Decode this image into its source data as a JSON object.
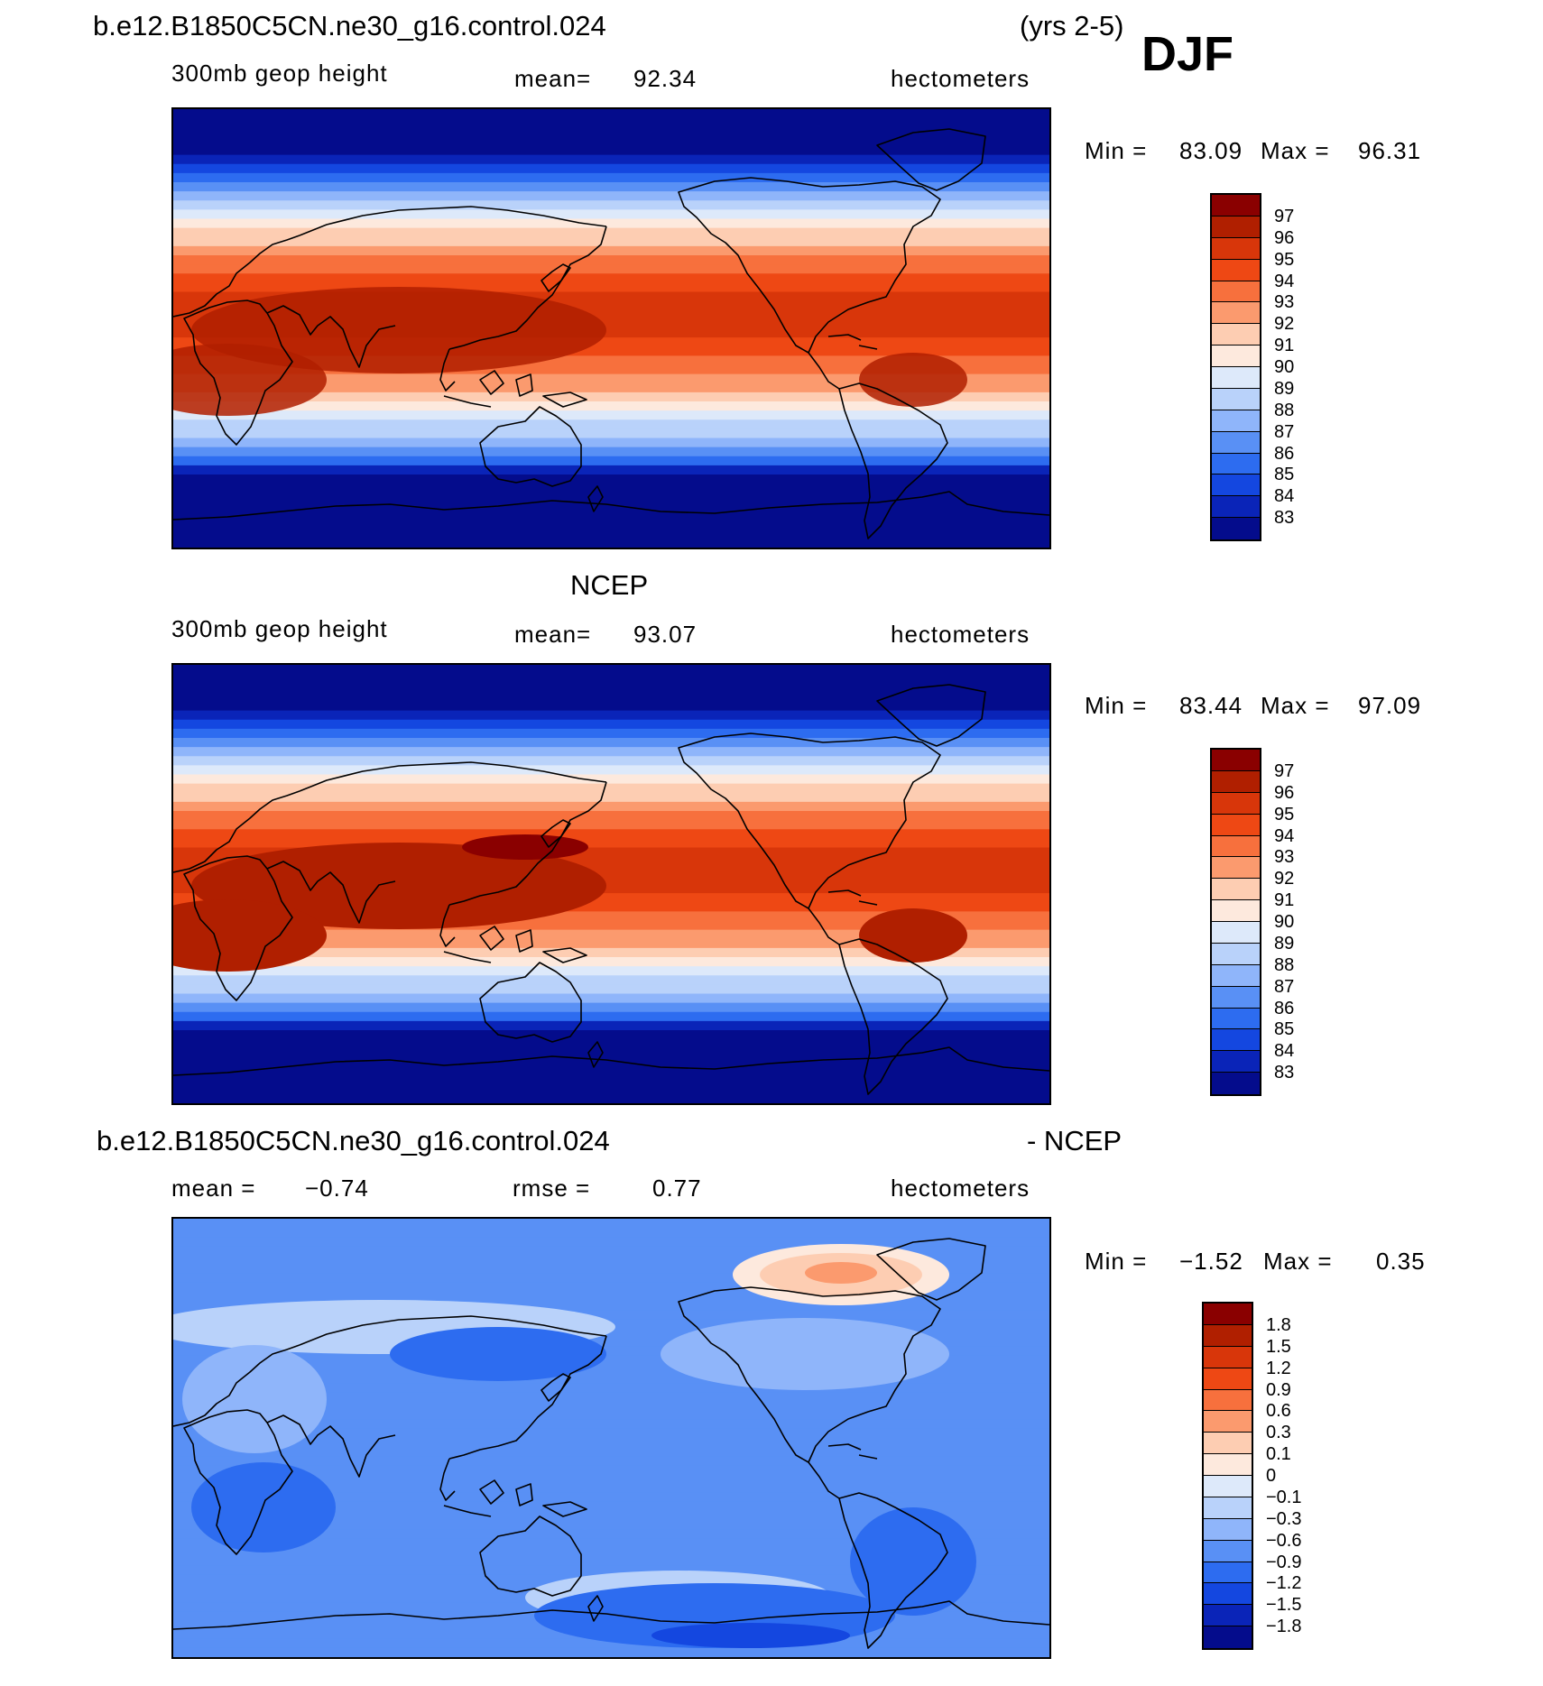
{
  "header": {
    "case_name": "b.e12.B1850C5CN.ne30_g16.control.024",
    "years": "(yrs 2-5)",
    "season": "DJF"
  },
  "chart_data": [
    {
      "type": "heatmap",
      "title": "b.e12.B1850C5CN.ne30_g16.control.024",
      "variable": "300mb geop height",
      "mean_label": "mean=",
      "mean_value": "92.34",
      "units": "hectometers",
      "min_label": "Min =",
      "min_value": "83.09",
      "max_label": "Max =",
      "max_value": "96.31",
      "contour_levels": [
        "97",
        "96",
        "95",
        "94",
        "93",
        "92",
        "91",
        "90",
        "89",
        "88",
        "87",
        "86",
        "85",
        "84",
        "83"
      ],
      "colors": [
        "#8a0000",
        "#b01f00",
        "#d8360a",
        "#ee4814",
        "#f7703d",
        "#fb9a6e",
        "#fdcdb2",
        "#fde9dd",
        "#dde9fa",
        "#b9d2fa",
        "#8fb5fa",
        "#5990f5",
        "#2d6cf0",
        "#1447e0",
        "#0a24b8",
        "#040c8c"
      ]
    },
    {
      "type": "heatmap",
      "title": "NCEP",
      "variable": "300mb geop height",
      "mean_label": "mean=",
      "mean_value": "93.07",
      "units": "hectometers",
      "min_label": "Min =",
      "min_value": "83.44",
      "max_label": "Max =",
      "max_value": "97.09",
      "contour_levels": [
        "97",
        "96",
        "95",
        "94",
        "93",
        "92",
        "91",
        "90",
        "89",
        "88",
        "87",
        "86",
        "85",
        "84",
        "83"
      ],
      "colors": [
        "#8a0000",
        "#b01f00",
        "#d8360a",
        "#ee4814",
        "#f7703d",
        "#fb9a6e",
        "#fdcdb2",
        "#fde9dd",
        "#dde9fa",
        "#b9d2fa",
        "#8fb5fa",
        "#5990f5",
        "#2d6cf0",
        "#1447e0",
        "#0a24b8",
        "#040c8c"
      ]
    },
    {
      "type": "heatmap",
      "title": "b.e12.B1850C5CN.ne30_g16.control.024",
      "title_suffix": "- NCEP",
      "mean_label": "mean =",
      "mean_value": "−0.74",
      "rmse_label": "rmse =",
      "rmse_value": "0.77",
      "units": "hectometers",
      "min_label": "Min =",
      "min_value": "−1.52",
      "max_label": "Max =",
      "max_value": "0.35",
      "contour_levels": [
        "1.8",
        "1.5",
        "1.2",
        "0.9",
        "0.6",
        "0.3",
        "0.1",
        "0",
        "−0.1",
        "−0.3",
        "−0.6",
        "−0.9",
        "−1.2",
        "−1.5",
        "−1.8"
      ],
      "colors": [
        "#8a0000",
        "#b01f00",
        "#d8360a",
        "#ee4814",
        "#f7703d",
        "#fb9a6e",
        "#fdcdb2",
        "#fde9dd",
        "#dde9fa",
        "#b9d2fa",
        "#8fb5fa",
        "#5990f5",
        "#2d6cf0",
        "#1447e0",
        "#0a24b8",
        "#040c8c"
      ]
    }
  ]
}
